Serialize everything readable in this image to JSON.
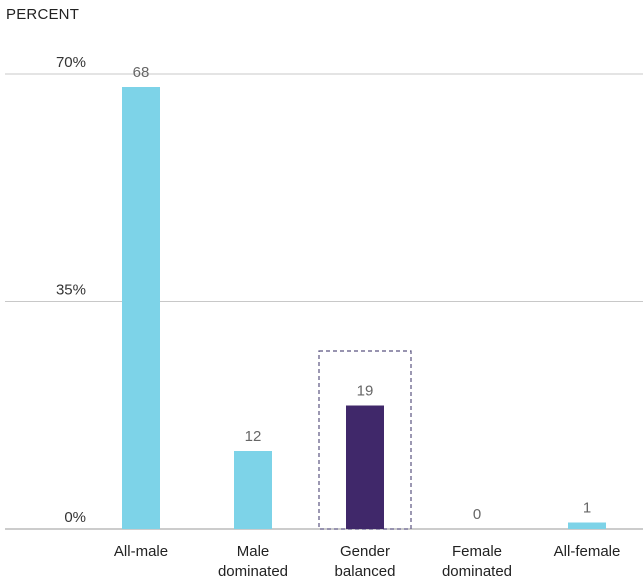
{
  "chart_data": {
    "type": "bar",
    "unit_label": "PERCENT",
    "categories": [
      [
        "All-male"
      ],
      [
        "Male",
        "dominated"
      ],
      [
        "Gender",
        "balanced"
      ],
      [
        "Female",
        "dominated"
      ],
      [
        "All-female"
      ]
    ],
    "values": [
      68,
      12,
      19,
      0,
      1
    ],
    "value_labels": [
      "68",
      "12",
      "19",
      "0",
      "1"
    ],
    "yticks": [
      {
        "value": 0,
        "label": "0%"
      },
      {
        "value": 35,
        "label": "35%"
      },
      {
        "value": 70,
        "label": "70%"
      }
    ],
    "ylim": [
      0,
      70
    ],
    "highlight_index": 2,
    "grid": true,
    "colors": {
      "bar": "#7dd3e8",
      "highlight_bar": "#40286a",
      "grid": "#c8c8c8",
      "highlight_box": "#5a5480"
    }
  }
}
